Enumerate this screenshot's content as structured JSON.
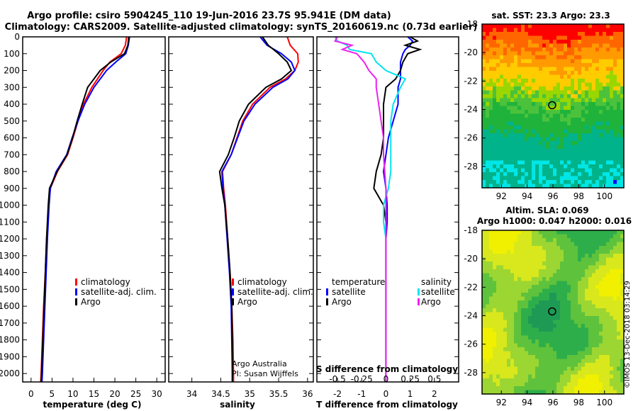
{
  "title": {
    "line1": "Argo profile: csiro 5904245_110 19-Jun-2016 23.7S 95.941E (DM data)",
    "line2": "Climatology: CARS2009. Satellite-adjusted climatology: synTS_20160619.nc (0.73d earlier)"
  },
  "colors": {
    "climatology": "#ff0000",
    "satellite": "#0000ff",
    "argo": "#000000",
    "sal_satellite": "#00e5ee",
    "sal_argo": "#ee22ee"
  },
  "chart_data": [
    {
      "type": "line",
      "name": "temperature",
      "xlabel": "temperature (deg C)",
      "ylabel": "",
      "xlim": [
        -2,
        32
      ],
      "ylim": [
        2050,
        0
      ],
      "xticks": [
        "0",
        "5",
        "10",
        "15",
        "20",
        "25",
        "30"
      ],
      "yticks": [
        "0",
        "100",
        "200",
        "300",
        "400",
        "500",
        "600",
        "700",
        "800",
        "900",
        "1000",
        "1100",
        "1200",
        "1300",
        "1400",
        "1500",
        "1600",
        "1700",
        "1800",
        "1900",
        "2000"
      ],
      "depth": [
        0,
        50,
        100,
        150,
        200,
        300,
        400,
        500,
        600,
        700,
        800,
        900,
        1000,
        1200,
        1400,
        1600,
        1800,
        2000,
        2050
      ],
      "series": [
        {
          "name": "climatology",
          "values": [
            22.8,
            22.5,
            21.5,
            18.8,
            17.2,
            14.5,
            12.5,
            11.2,
            10.0,
            8.7,
            6.3,
            4.6,
            4.2,
            3.7,
            3.4,
            3.0,
            2.7,
            2.4,
            2.3
          ]
        },
        {
          "name": "satellite-adj. clim.",
          "values": [
            23.5,
            23.2,
            22.6,
            20.2,
            18.0,
            15.0,
            12.8,
            11.2,
            9.8,
            8.5,
            6.0,
            4.6,
            4.3,
            3.9,
            3.6,
            3.3,
            3.0,
            2.7,
            2.6
          ]
        },
        {
          "name": "Argo",
          "values": [
            23.3,
            23.1,
            22.3,
            19.0,
            16.5,
            13.5,
            12.2,
            11.0,
            9.9,
            8.6,
            6.2,
            4.4,
            4.1,
            3.7,
            3.4,
            3.1,
            2.8,
            2.5,
            2.4
          ]
        }
      ],
      "legend": [
        "climatology",
        "satellite-adj. clim.",
        "Argo"
      ],
      "legend_position": "lower-right"
    },
    {
      "type": "line",
      "name": "salinity",
      "xlabel": "salinity",
      "ylabel": "",
      "xlim": [
        33.6,
        36.1
      ],
      "ylim": [
        2050,
        0
      ],
      "xticks": [
        "34",
        "34.5",
        "35",
        "35.5",
        "36"
      ],
      "depth": [
        0,
        50,
        100,
        150,
        200,
        250,
        300,
        400,
        500,
        600,
        700,
        800,
        900,
        1000,
        1200,
        1400,
        1600,
        1800,
        2000,
        2050
      ],
      "series": [
        {
          "name": "climatology",
          "values": [
            35.65,
            35.7,
            35.83,
            35.84,
            35.78,
            35.62,
            35.35,
            35.05,
            34.88,
            34.78,
            34.68,
            34.53,
            34.55,
            34.58,
            34.62,
            34.66,
            34.69,
            34.71,
            34.72,
            34.72
          ]
        },
        {
          "name": "satellite-adj. clim.",
          "values": [
            35.18,
            35.3,
            35.55,
            35.72,
            35.78,
            35.66,
            35.4,
            35.09,
            34.9,
            34.79,
            34.68,
            34.52,
            34.54,
            34.57,
            34.61,
            34.65,
            34.68,
            34.69,
            34.7,
            34.7
          ]
        },
        {
          "name": "Argo",
          "values": [
            35.22,
            35.32,
            35.5,
            35.65,
            35.72,
            35.55,
            35.28,
            34.98,
            34.82,
            34.73,
            34.63,
            34.48,
            34.52,
            34.57,
            34.62,
            34.66,
            34.69,
            34.7,
            34.7,
            34.7
          ]
        }
      ],
      "legend": [
        "climatology",
        "satellite-adj. clim.",
        "Argo"
      ],
      "legend_position": "lower-right",
      "annotation": [
        "Argo Australia",
        "PI: Susan Wijffels"
      ]
    },
    {
      "type": "line",
      "name": "difference",
      "xlabel": "T difference from climatology",
      "xlabel_top": "S difference from climatology",
      "xlim": [
        -2.85,
        3.0
      ],
      "ylim": [
        2050,
        0
      ],
      "xticks": [
        "-2",
        "-1",
        "0",
        "1",
        "2"
      ],
      "xticks_s": [
        "-0.5",
        "-0.25",
        "0",
        "0.25",
        "0.5"
      ],
      "depth": [
        0,
        25,
        50,
        75,
        100,
        150,
        200,
        250,
        300,
        400,
        500,
        600,
        700,
        800,
        900,
        1000,
        1100,
        1200,
        1400,
        1600,
        1800,
        2000,
        2050
      ],
      "series": [
        {
          "name": "T satellite",
          "group": "temperature",
          "values": [
            0.9,
            1.1,
            1.0,
            0.8,
            0.7,
            0.6,
            0.6,
            0.6,
            0.5,
            0.5,
            0.3,
            0.1,
            0,
            -0.1,
            0,
            0.05,
            0.05,
            0,
            0,
            0,
            0,
            0,
            0
          ]
        },
        {
          "name": "T Argo",
          "group": "temperature",
          "values": [
            1.0,
            1.3,
            0.8,
            1.4,
            0.9,
            0.7,
            0.6,
            0.4,
            0,
            -0.1,
            -0.1,
            -0.1,
            -0.2,
            -0.4,
            -0.5,
            -0.1,
            0,
            0,
            0,
            0,
            0,
            0,
            0
          ]
        },
        {
          "name": "S satellite",
          "group": "salinity",
          "values": [
            -2.1,
            -2.0,
            -1.6,
            -1.5,
            -0.6,
            -0.4,
            0.0,
            0.8,
            0.6,
            0.3,
            0.2,
            0.2,
            0.2,
            0.2,
            0.1,
            -0.1,
            -0.1,
            0,
            0,
            0,
            0,
            0,
            0
          ]
        },
        {
          "name": "S Argo",
          "group": "salinity",
          "values": [
            -2.0,
            -2.1,
            -1.4,
            -1.8,
            -1.2,
            -0.9,
            -0.7,
            -0.4,
            -0.4,
            -0.3,
            -0.2,
            -0.1,
            -0.1,
            -0.05,
            0,
            0,
            0,
            0,
            0,
            0,
            0,
            0,
            0
          ]
        }
      ],
      "legend_groups": [
        {
          "heading": "temperature",
          "items": [
            "satellite",
            "Argo"
          ]
        },
        {
          "heading": "salinity",
          "items": [
            "satellite",
            "Argo"
          ]
        }
      ]
    },
    {
      "type": "heatmap",
      "name": "sst_map",
      "title": "sat. SST: 23.3 Argo: 23.3",
      "xlim": [
        90.5,
        101.5
      ],
      "ylim": [
        -29.5,
        -18
      ],
      "xticks": [
        "92",
        "94",
        "96",
        "98",
        "100"
      ],
      "yticks": [
        "-18",
        "-20",
        "-22",
        "-24",
        "-26",
        "-28"
      ],
      "marker": {
        "lon": 95.941,
        "lat": -23.7
      },
      "colormap": [
        "#ff0000",
        "#ff6600",
        "#ff9a00",
        "#ffcc00",
        "#9ad600",
        "#4cc23c",
        "#1fb33b",
        "#00b38a",
        "#00e6e6",
        "#0000ff"
      ]
    },
    {
      "type": "heatmap",
      "name": "sla_map",
      "title": "Altim. SLA: 0.069",
      "subtitle": "Argo h1000: 0.047 h2000: 0.016",
      "xlim": [
        90.5,
        101.5
      ],
      "ylim": [
        -29.5,
        -18
      ],
      "xticks": [
        "92",
        "94",
        "96",
        "98",
        "100"
      ],
      "yticks": [
        "-18",
        "-20",
        "-22",
        "-24",
        "-26",
        "-28"
      ],
      "marker": {
        "lon": 95.941,
        "lat": -23.7
      },
      "colormap": [
        "#1e9a55",
        "#2eae4a",
        "#5ec23c",
        "#9cd632",
        "#d8e81c",
        "#f0f000"
      ]
    }
  ],
  "stamp": "©IMOS 13-Dec-2018 03:14:29"
}
